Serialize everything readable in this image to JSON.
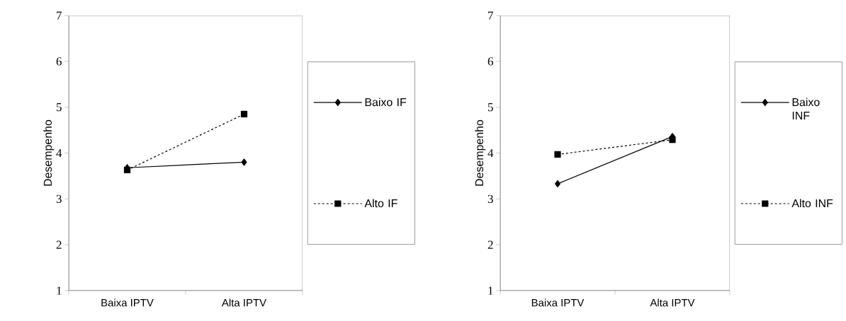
{
  "chart_data": [
    {
      "type": "line",
      "ylabel": "Desempenho",
      "categories": [
        "Baixa IPTV",
        "Alta IPTV"
      ],
      "ylim": [
        1,
        7
      ],
      "yticks": [
        1,
        2,
        3,
        4,
        5,
        6,
        7
      ],
      "legend": "right",
      "series": [
        {
          "name": "Baixo IF",
          "color": "#000000",
          "values": [
            3.68,
            3.8
          ],
          "marker": "diamond",
          "line_style": "solid"
        },
        {
          "name": "Alto IF",
          "color": "#000000",
          "values": [
            3.63,
            4.85
          ],
          "marker": "square",
          "line_style": "dashed"
        }
      ]
    },
    {
      "type": "line",
      "ylabel": "Desempenho",
      "categories": [
        "Baixa IPTV",
        "Alta IPTV"
      ],
      "ylim": [
        1,
        7
      ],
      "yticks": [
        1,
        2,
        3,
        4,
        5,
        6,
        7
      ],
      "legend": "right",
      "series": [
        {
          "name": "Baixo INF",
          "color": "#000000",
          "values": [
            3.33,
            4.36
          ],
          "marker": "diamond",
          "line_style": "solid"
        },
        {
          "name": "Alto INF",
          "color": "#000000",
          "values": [
            3.97,
            4.29
          ],
          "marker": "square",
          "line_style": "dashed"
        }
      ]
    }
  ]
}
